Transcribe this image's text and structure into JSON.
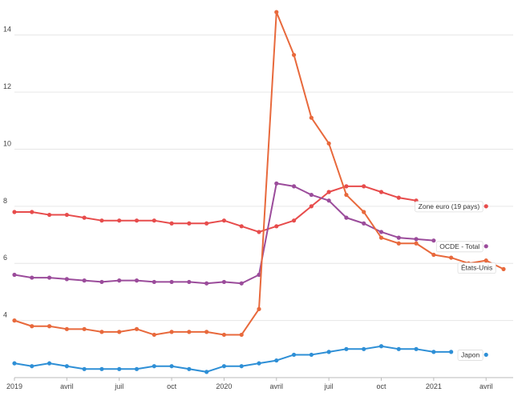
{
  "chart_data": {
    "type": "line",
    "title": "",
    "xlabel": "",
    "ylabel": "",
    "ylim": [
      2,
      15
    ],
    "grid": true,
    "legend": "end-of-line labels",
    "y_ticks": [
      4,
      6,
      8,
      10,
      12,
      14
    ],
    "x_ticks": [
      {
        "x": "2019-01",
        "label": "2019"
      },
      {
        "x": "2019-04",
        "label": "avril"
      },
      {
        "x": "2019-07",
        "label": "juil"
      },
      {
        "x": "2019-10",
        "label": "oct"
      },
      {
        "x": "2020-01",
        "label": "2020"
      },
      {
        "x": "2020-04",
        "label": "avril"
      },
      {
        "x": "2020-07",
        "label": "juil"
      },
      {
        "x": "2020-10",
        "label": "oct"
      },
      {
        "x": "2021-01",
        "label": "2021"
      },
      {
        "x": "2021-04",
        "label": "avril"
      }
    ],
    "x": [
      "2019-01",
      "2019-02",
      "2019-03",
      "2019-04",
      "2019-05",
      "2019-06",
      "2019-07",
      "2019-08",
      "2019-09",
      "2019-10",
      "2019-11",
      "2019-12",
      "2020-01",
      "2020-02",
      "2020-03",
      "2020-04",
      "2020-05",
      "2020-06",
      "2020-07",
      "2020-08",
      "2020-09",
      "2020-10",
      "2020-11",
      "2020-12",
      "2021-01",
      "2021-02",
      "2021-03",
      "2021-04",
      "2021-05"
    ],
    "series": [
      {
        "name": "Zone euro (19 pays)",
        "color": "#e74c4c",
        "values": [
          7.8,
          7.8,
          7.7,
          7.7,
          7.6,
          7.5,
          7.5,
          7.5,
          7.5,
          7.4,
          7.4,
          7.4,
          7.5,
          7.3,
          7.1,
          7.3,
          7.5,
          8.0,
          8.5,
          8.7,
          8.7,
          8.5,
          8.3,
          8.2,
          null,
          null,
          null,
          8.0,
          null
        ]
      },
      {
        "name": "OCDE - Total",
        "color": "#9b4c9b",
        "values": [
          5.6,
          5.5,
          5.5,
          5.45,
          5.4,
          5.35,
          5.4,
          5.4,
          5.35,
          5.35,
          5.35,
          5.3,
          5.35,
          5.3,
          5.6,
          8.8,
          8.7,
          8.4,
          8.2,
          7.6,
          7.4,
          7.1,
          6.9,
          6.85,
          6.8,
          null,
          null,
          6.6,
          null
        ]
      },
      {
        "name": "États-Unis",
        "color": "#e8693c",
        "values": [
          4.0,
          3.8,
          3.8,
          3.7,
          3.7,
          3.6,
          3.6,
          3.7,
          3.5,
          3.6,
          3.6,
          3.6,
          3.5,
          3.5,
          4.4,
          14.8,
          13.3,
          11.1,
          10.2,
          8.4,
          7.8,
          6.9,
          6.7,
          6.7,
          6.3,
          6.2,
          6.0,
          6.1,
          5.8
        ]
      },
      {
        "name": "Japon",
        "color": "#2e8fd6",
        "values": [
          2.5,
          2.4,
          2.5,
          2.4,
          2.3,
          2.3,
          2.3,
          2.3,
          2.4,
          2.4,
          2.3,
          2.2,
          2.4,
          2.4,
          2.5,
          2.6,
          2.8,
          2.8,
          2.9,
          3.0,
          3.0,
          3.1,
          3.0,
          3.0,
          2.9,
          2.9,
          null,
          2.8,
          null
        ]
      }
    ],
    "end_labels": [
      {
        "series": 0,
        "text": "Zone euro (19 pays)"
      },
      {
        "series": 1,
        "text": "OCDE - Total"
      },
      {
        "series": 2,
        "text": "États-Unis"
      },
      {
        "series": 3,
        "text": "Japon"
      }
    ]
  }
}
